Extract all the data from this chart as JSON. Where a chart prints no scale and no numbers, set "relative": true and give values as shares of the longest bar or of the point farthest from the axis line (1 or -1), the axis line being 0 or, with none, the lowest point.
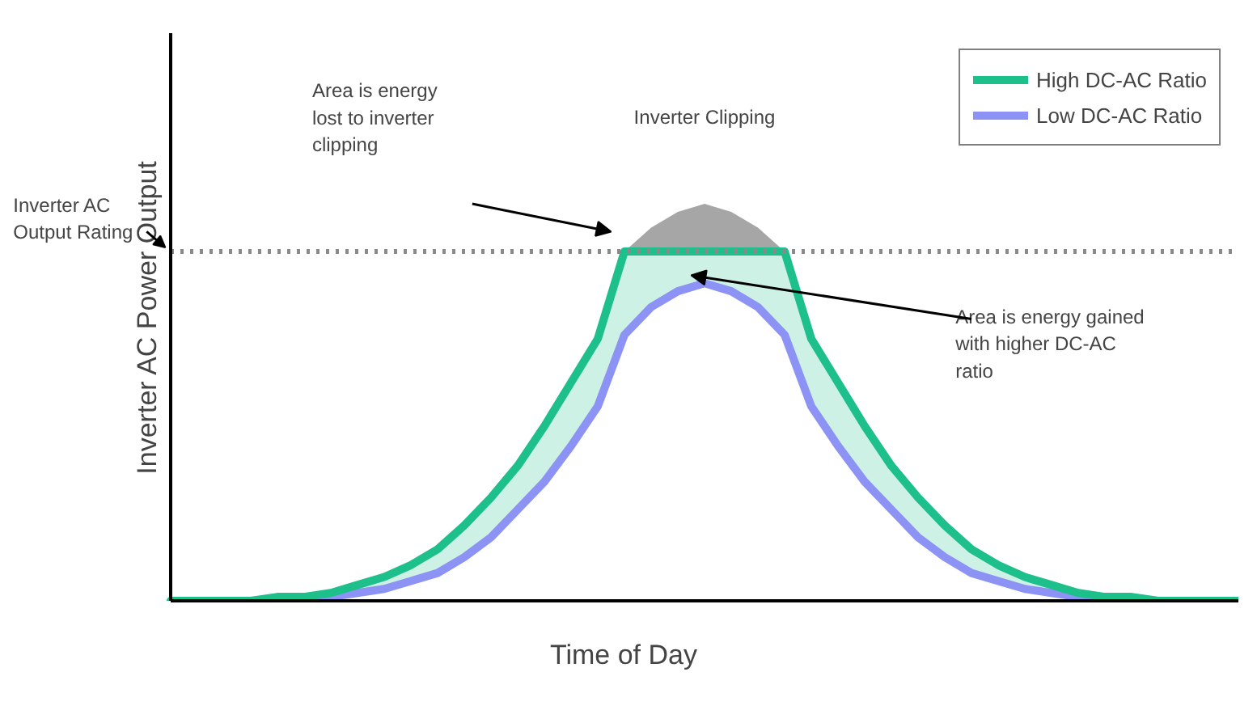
{
  "chart_data": {
    "type": "line",
    "relative": true,
    "xlabel": "Time of Day",
    "ylabel": "Inverter AC Power Output",
    "categories": [
      null,
      null,
      null,
      null,
      null,
      null,
      null,
      null,
      null,
      null,
      null,
      null,
      null,
      null,
      null,
      null,
      null,
      null,
      null,
      null,
      null,
      null,
      null,
      null,
      null,
      null,
      null,
      null,
      null,
      null,
      null,
      null,
      null,
      null,
      null,
      null,
      null,
      null,
      null,
      null,
      null
    ],
    "series": [
      {
        "type": "area",
        "color": "#a6a6a6",
        "values": [
          null,
          null,
          null,
          null,
          null,
          null,
          null,
          null,
          null,
          null,
          null,
          null,
          null,
          null,
          null,
          null,
          null,
          0.88,
          0.94,
          0.98,
          1,
          0.98,
          0.94,
          0.88,
          null,
          null,
          null,
          null,
          null,
          null,
          null,
          null,
          null,
          null,
          null,
          null,
          null,
          null,
          null,
          null,
          null
        ]
      },
      {
        "type": "area",
        "name": "High DC-AC Ratio",
        "color": "#1dbf8a",
        "values": [
          0,
          0,
          0,
          0,
          0.01,
          0.01,
          0.02,
          0.04,
          0.06,
          0.09,
          0.13,
          0.19,
          0.26,
          0.34,
          0.44,
          0.55,
          0.66,
          0.88,
          0.88,
          0.88,
          0.88,
          0.88,
          0.88,
          0.88,
          0.66,
          0.55,
          0.44,
          0.34,
          0.26,
          0.19,
          0.13,
          0.09,
          0.06,
          0.04,
          0.02,
          0.01,
          0.01,
          0,
          0,
          0,
          0
        ]
      },
      {
        "name": "Low DC-AC Ratio",
        "color": "#8c93f5",
        "values": [
          null,
          null,
          null,
          null,
          null,
          0,
          0.01,
          0.02,
          0.03,
          0.05,
          0.07,
          0.11,
          0.16,
          0.23,
          0.3,
          0.39,
          0.49,
          0.67,
          0.74,
          0.78,
          0.8,
          0.78,
          0.74,
          0.67,
          0.49,
          0.39,
          0.3,
          0.23,
          0.16,
          0.11,
          0.07,
          0.05,
          0.03,
          0.02,
          0.01,
          0,
          null,
          null,
          null,
          null,
          null
        ]
      }
    ],
    "ref_lines": [
      {
        "axis": "y",
        "value": 0.88,
        "label": "Inverter AC Output Rating",
        "color": "#8a8a8a",
        "line_style": "dotted"
      }
    ],
    "annotations": [
      "Area is energy lost to inverter clipping",
      "Area is energy gained with higher DC-AC ratio",
      "Inverter Clipping"
    ],
    "legend": "top right",
    "grid": false,
    "line_style": "solid",
    "marker": "none"
  }
}
